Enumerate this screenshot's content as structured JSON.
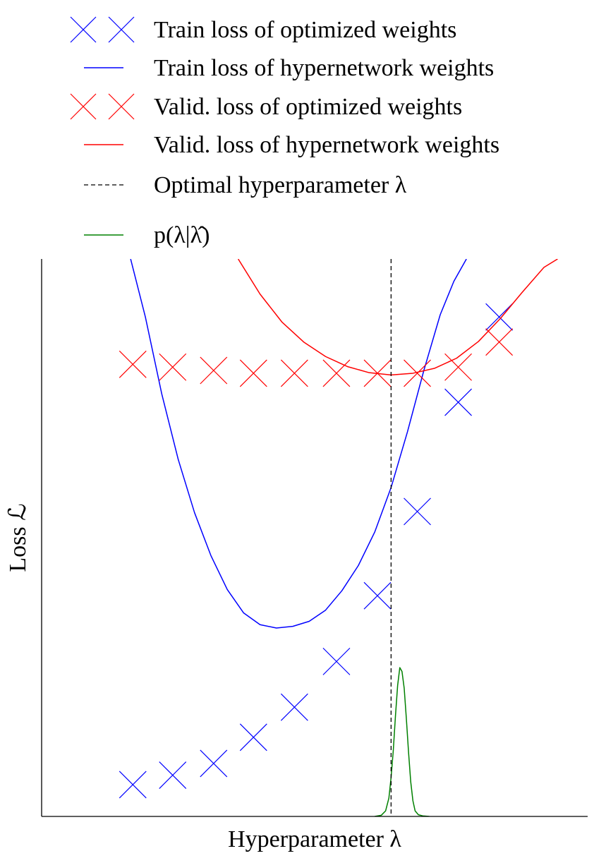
{
  "chart_data": {
    "type": "line",
    "xlabel": "Hyperparameter λ",
    "ylabel": "Loss ℒ",
    "xlim": [
      0,
      10
    ],
    "ylim": [
      0,
      10
    ],
    "grid": false,
    "ticks_visible": false,
    "legend_position": "top",
    "legend": [
      {
        "label": "Train loss of optimized weights",
        "style": "marker-x",
        "color": "#0000ff"
      },
      {
        "label": "Train loss of hypernetwork weights",
        "style": "line",
        "color": "#0000ff"
      },
      {
        "label": "Valid. loss of optimized weights",
        "style": "marker-x",
        "color": "#ff0000"
      },
      {
        "label": "Valid. loss of hypernetwork weights",
        "style": "line",
        "color": "#ff0000"
      },
      {
        "label": "Optimal hyperparameter λ",
        "style": "dashed",
        "color": "#000000"
      },
      {
        "label": "p(λ|λ̂)",
        "style": "line",
        "color": "#008000"
      }
    ],
    "series": [
      {
        "kind": "scatter-x",
        "color": "#0000ff",
        "points": [
          [
            1.67,
            0.57
          ],
          [
            2.4,
            0.74
          ],
          [
            3.15,
            0.95
          ],
          [
            3.88,
            1.42
          ],
          [
            4.63,
            1.96
          ],
          [
            5.4,
            2.78
          ],
          [
            6.15,
            3.96
          ],
          [
            6.88,
            5.47
          ],
          [
            7.63,
            7.43
          ],
          [
            8.38,
            8.96
          ]
        ]
      },
      {
        "kind": "curve",
        "color": "#0000ff",
        "x": [
          1.63,
          1.9,
          2.2,
          2.5,
          2.8,
          3.1,
          3.4,
          3.7,
          4.0,
          4.3,
          4.6,
          4.9,
          5.2,
          5.5,
          5.8,
          6.1,
          6.4,
          6.7,
          7.0,
          7.3,
          7.55,
          7.78
        ],
        "y": [
          10.0,
          8.96,
          7.58,
          6.41,
          5.45,
          4.68,
          4.07,
          3.65,
          3.44,
          3.38,
          3.41,
          3.5,
          3.7,
          4.05,
          4.5,
          5.1,
          5.9,
          6.9,
          8.0,
          9.0,
          9.6,
          10.0
        ]
      },
      {
        "kind": "scatter-x",
        "color": "#ff0000",
        "points": [
          [
            1.67,
            8.11
          ],
          [
            2.4,
            8.06
          ],
          [
            3.15,
            8.0
          ],
          [
            3.88,
            7.95
          ],
          [
            4.63,
            7.95
          ],
          [
            5.4,
            7.95
          ],
          [
            6.15,
            7.95
          ],
          [
            6.88,
            7.95
          ],
          [
            7.63,
            8.06
          ],
          [
            8.38,
            8.51
          ]
        ]
      },
      {
        "kind": "curve",
        "color": "#ff0000",
        "x": [
          3.6,
          4.0,
          4.4,
          4.8,
          5.2,
          5.6,
          6.0,
          6.4,
          6.8,
          7.2,
          7.6,
          8.0,
          8.4,
          8.8,
          9.2,
          9.45
        ],
        "y": [
          10.0,
          9.37,
          8.87,
          8.51,
          8.25,
          8.07,
          7.96,
          7.92,
          7.95,
          8.04,
          8.22,
          8.52,
          8.93,
          9.4,
          9.85,
          10.0
        ]
      },
      {
        "kind": "curve",
        "color": "#008000",
        "x": [
          6.1,
          6.22,
          6.3,
          6.36,
          6.4,
          6.44,
          6.48,
          6.52,
          6.56,
          6.6,
          6.64,
          6.68,
          6.72,
          6.76,
          6.8,
          6.84,
          6.9,
          6.98,
          7.1
        ],
        "y": [
          0.0,
          0.02,
          0.1,
          0.33,
          0.7,
          1.18,
          1.8,
          2.35,
          2.67,
          2.6,
          2.3,
          1.75,
          1.15,
          0.62,
          0.28,
          0.1,
          0.03,
          0.01,
          0.0
        ]
      },
      {
        "kind": "vline",
        "color": "#000000",
        "dashed": true,
        "x": 6.4
      }
    ]
  }
}
